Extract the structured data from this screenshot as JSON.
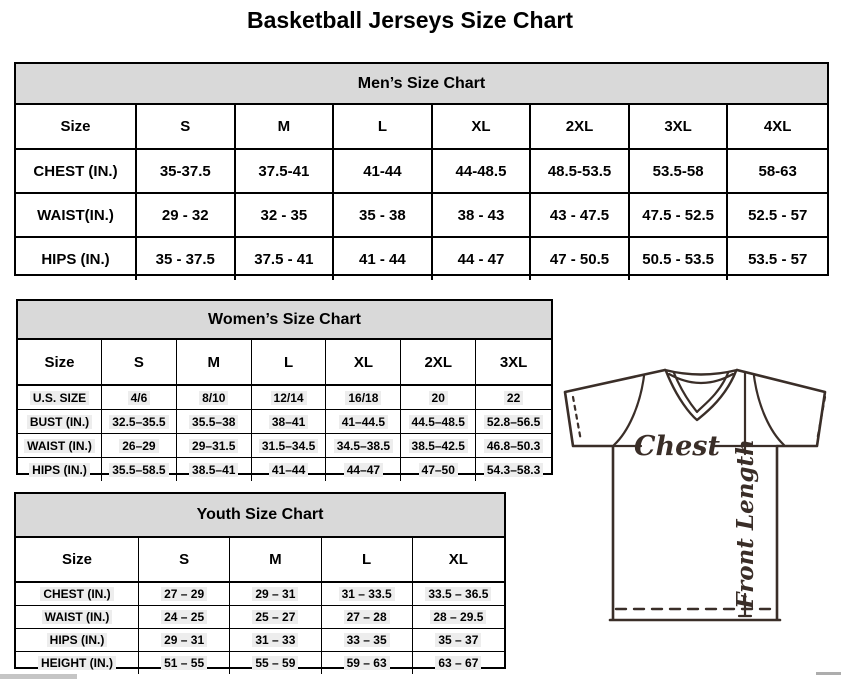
{
  "page": {
    "title": "Basketball Jerseys Size Chart"
  },
  "colors": {
    "table_header_bg": "#d9d9d9",
    "table_border": "#000000",
    "row_highlight_bg": "#ededed",
    "jersey_line": "#3a2e28",
    "scrollbar_gray": "#c5c5c5"
  },
  "tables": {
    "men": {
      "title": "Men’s Size Chart",
      "columns": [
        "Size",
        "S",
        "M",
        "L",
        "XL",
        "2XL",
        "3XL",
        "4XL"
      ],
      "rows": [
        {
          "label": "CHEST (IN.)",
          "values": [
            "35-37.5",
            "37.5-41",
            "41-44",
            "44-48.5",
            "48.5-53.5",
            "53.5-58",
            "58-63"
          ]
        },
        {
          "label": "WAIST(IN.)",
          "values": [
            "29 - 32",
            "32 - 35",
            "35 - 38",
            "38 - 43",
            "43 - 47.5",
            "47.5 - 52.5",
            "52.5 - 57"
          ]
        },
        {
          "label": "HIPS (IN.)",
          "values": [
            "35 - 37.5",
            "37.5 - 41",
            "41 - 44",
            "44 - 47",
            "47 - 50.5",
            "50.5 - 53.5",
            "53.5 - 57"
          ]
        }
      ]
    },
    "women": {
      "title": "Women’s Size Chart",
      "columns": [
        "Size",
        "S",
        "M",
        "L",
        "XL",
        "2XL",
        "3XL"
      ],
      "rows": [
        {
          "label": "U.S. SIZE",
          "values": [
            "4/6",
            "8/10",
            "12/14",
            "16/18",
            "20",
            "22"
          ]
        },
        {
          "label": "BUST (IN.)",
          "values": [
            "32.5–35.5",
            "35.5–38",
            "38–41",
            "41–44.5",
            "44.5–48.5",
            "52.8–56.5"
          ]
        },
        {
          "label": "WAIST (IN.)",
          "values": [
            "26–29",
            "29–31.5",
            "31.5–34.5",
            "34.5–38.5",
            "38.5–42.5",
            "46.8–50.3"
          ]
        },
        {
          "label": "HIPS (IN.)",
          "values": [
            "35.5–58.5",
            "38.5–41",
            "41–44",
            "44–47",
            "47–50",
            "54.3–58.3"
          ]
        }
      ]
    },
    "youth": {
      "title": "Youth Size Chart",
      "columns": [
        "Size",
        "S",
        "M",
        "L",
        "XL"
      ],
      "rows": [
        {
          "label": "CHEST (IN.)",
          "values": [
            "27 – 29",
            "29 – 31",
            "31 – 33.5",
            "33.5 – 36.5"
          ]
        },
        {
          "label": "WAIST (IN.)",
          "values": [
            "24 – 25",
            "25 – 27",
            "27 – 28",
            "28 – 29.5"
          ]
        },
        {
          "label": "HIPS (IN.)",
          "values": [
            "29 – 31",
            "31 – 33",
            "33 – 35",
            "35 – 37"
          ]
        },
        {
          "label": "HEIGHT (IN.)",
          "values": [
            "51 – 55",
            "55 – 59",
            "59 – 63",
            "63 – 67"
          ]
        }
      ]
    }
  },
  "diagram": {
    "chest_label": "Chest",
    "front_length_label": "Front Length"
  }
}
